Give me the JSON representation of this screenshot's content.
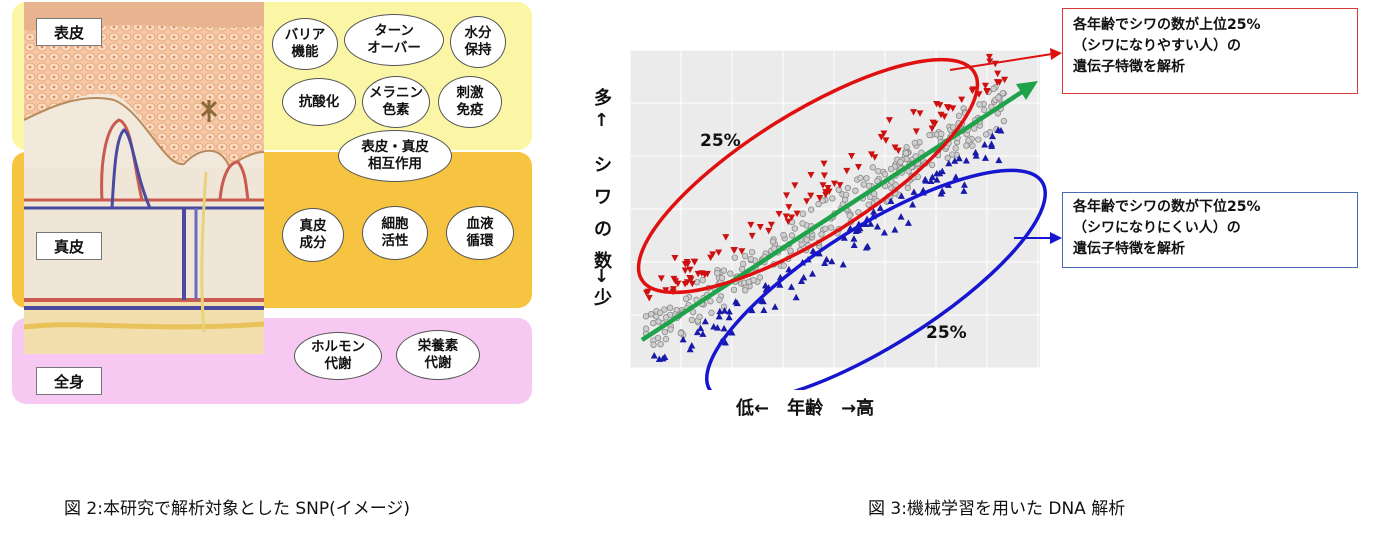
{
  "figure2": {
    "layers": [
      {
        "label": "表皮",
        "color": "#fbf6a6"
      },
      {
        "label": "真皮",
        "color": "#f6c440"
      },
      {
        "label": "全身",
        "color": "#f7c8f2"
      }
    ],
    "bubbles": [
      {
        "text": "バリア\n機能"
      },
      {
        "text": "ターン\nオーバー"
      },
      {
        "text": "水分\n保持"
      },
      {
        "text": "抗酸化"
      },
      {
        "text": "メラニン\n色素"
      },
      {
        "text": "刺激\n免疫"
      },
      {
        "text": "表皮・真皮\n相互作用"
      },
      {
        "text": "真皮\n成分"
      },
      {
        "text": "細胞\n活性"
      },
      {
        "text": "血液\n循環"
      },
      {
        "text": "ホルモン\n代謝"
      },
      {
        "text": "栄養素\n代謝"
      }
    ],
    "caption": "図 2:本研究で解析対象とした SNP(イメージ)"
  },
  "figure3": {
    "y_label_top": "多↑",
    "y_label_mid": "シワの数",
    "y_label_bottom": "↓少",
    "x_label": "低←　年齢　→高",
    "upper_percent": "25%",
    "lower_percent": "25%",
    "callout_top": "各年齢でシワの数が上位25%\n（シワになりやすい人）の\n遺伝子特徴を解析",
    "callout_bottom": "各年齢でシワの数が下位25%\n（シワになりにくい人）の\n遺伝子特徴を解析",
    "colors": {
      "upper": "#cc1111",
      "lower": "#1a1aa8",
      "middle": "#8a8a8a",
      "trend": "#1fa34a",
      "panel": "#ececec"
    },
    "caption": "図 3:機械学習を用いた DNA 解析"
  }
}
